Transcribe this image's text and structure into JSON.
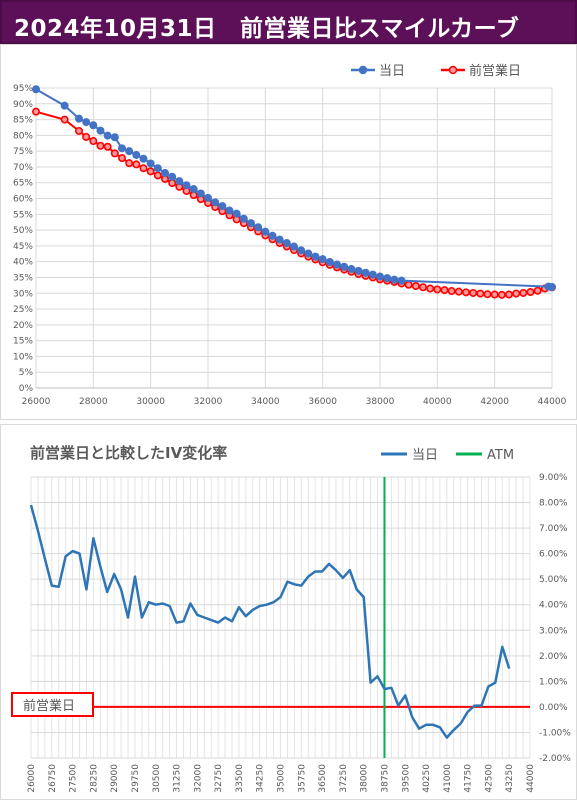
{
  "header": {
    "title": "2024年10月31日　前営業日比スマイルカーブ"
  },
  "colors": {
    "header_bg": "#5c1058",
    "today": "#4472c4",
    "prev": "#ff0000",
    "atm": "#00b050",
    "ref": "#ff0000"
  },
  "chart_data": [
    {
      "type": "line",
      "title": "",
      "legend": {
        "position": "top-right"
      },
      "grid": true,
      "xlim": [
        26000,
        44000
      ],
      "ylim": [
        0,
        95
      ],
      "x_ticks": [
        26000,
        28000,
        30000,
        32000,
        34000,
        36000,
        38000,
        40000,
        42000,
        44000
      ],
      "x_tick_labels": [
        "26000",
        "28000",
        "30000",
        "32000",
        "34000",
        "36000",
        "38000",
        "40000",
        "42000",
        "44000"
      ],
      "y_ticks": [
        0,
        5,
        10,
        15,
        20,
        25,
        30,
        35,
        40,
        45,
        50,
        55,
        60,
        65,
        70,
        75,
        80,
        85,
        90,
        95
      ],
      "y_tick_labels": [
        "0%",
        "5%",
        "10%",
        "15%",
        "20%",
        "25%",
        "30%",
        "35%",
        "40%",
        "45%",
        "50%",
        "55%",
        "60%",
        "65%",
        "70%",
        "75%",
        "80%",
        "85%",
        "90%",
        "95%"
      ],
      "series": [
        {
          "name": "当日",
          "color": "#4472c4",
          "x": [
            26000,
            27000,
            27500,
            27750,
            28000,
            28250,
            28500,
            28750,
            29000,
            29250,
            29500,
            29750,
            30000,
            30250,
            30500,
            30750,
            31000,
            31250,
            31500,
            31750,
            32000,
            32250,
            32500,
            32750,
            33000,
            33250,
            33500,
            33750,
            34000,
            34250,
            34500,
            34750,
            35000,
            35250,
            35500,
            35750,
            36000,
            36250,
            36500,
            36750,
            37000,
            37250,
            37500,
            37750,
            38000,
            38250,
            38500,
            38750,
            43875,
            44000
          ],
          "y": [
            94.6,
            89.4,
            85.3,
            84.2,
            83.2,
            81.5,
            79.9,
            79.4,
            75.9,
            75.0,
            73.8,
            72.6,
            71.1,
            69.6,
            68.1,
            66.9,
            65.5,
            64.2,
            63.0,
            61.6,
            60.2,
            58.8,
            57.6,
            56.2,
            55.2,
            53.6,
            52.2,
            50.9,
            49.5,
            48.2,
            47.0,
            45.9,
            44.8,
            43.6,
            42.6,
            41.6,
            40.8,
            39.9,
            39.1,
            38.4,
            37.7,
            37.1,
            36.5,
            35.9,
            35.3,
            34.8,
            34.3,
            34.0,
            32.1,
            32.0
          ]
        },
        {
          "name": "前営業日",
          "color": "#ff0000",
          "x": [
            26000,
            27000,
            27500,
            27750,
            28000,
            28250,
            28500,
            28750,
            29000,
            29250,
            29500,
            29750,
            30000,
            30250,
            30500,
            30750,
            31000,
            31250,
            31500,
            31750,
            32000,
            32250,
            32500,
            32750,
            33000,
            33250,
            33500,
            33750,
            34000,
            34250,
            34500,
            34750,
            35000,
            35250,
            35500,
            35750,
            36000,
            36250,
            36500,
            36750,
            37000,
            37250,
            37500,
            37750,
            38000,
            38250,
            38500,
            38750,
            39000,
            39250,
            39500,
            39750,
            40000,
            40250,
            40500,
            40750,
            41000,
            41250,
            41500,
            41750,
            42000,
            42250,
            42500,
            42750,
            43000,
            43250,
            43500,
            43750,
            44000
          ],
          "y": [
            87.5,
            85.0,
            81.4,
            79.5,
            78.2,
            76.7,
            76.4,
            74.3,
            72.8,
            71.2,
            70.8,
            69.6,
            68.6,
            67.3,
            66.2,
            64.9,
            63.7,
            62.4,
            61.1,
            59.8,
            58.6,
            57.3,
            56.0,
            54.7,
            53.4,
            52.2,
            50.9,
            49.6,
            48.3,
            47.1,
            45.9,
            44.8,
            43.7,
            42.6,
            41.6,
            40.7,
            39.8,
            39.0,
            38.2,
            37.5,
            36.8,
            36.1,
            35.5,
            35.0,
            34.4,
            34.0,
            33.6,
            33.1,
            32.7,
            32.3,
            31.9,
            31.5,
            31.2,
            31.0,
            30.7,
            30.5,
            30.3,
            30.1,
            29.9,
            29.7,
            29.6,
            29.5,
            29.6,
            29.9,
            30.1,
            30.4,
            30.8,
            31.5,
            31.9
          ]
        }
      ]
    },
    {
      "type": "line",
      "title": "前営業日と比較したIV変化率",
      "legend": {
        "position": "top-right"
      },
      "grid": true,
      "ylim": [
        -2,
        9
      ],
      "y_axis_side": "right",
      "categories": [
        26000,
        26250,
        26500,
        26750,
        27000,
        27250,
        27500,
        27750,
        28000,
        28250,
        28500,
        28750,
        29000,
        29250,
        29500,
        29750,
        30000,
        30250,
        30500,
        30750,
        31000,
        31250,
        31500,
        31750,
        32000,
        32250,
        32500,
        32750,
        33000,
        33250,
        33500,
        33750,
        34000,
        34250,
        34500,
        34750,
        35000,
        35250,
        35500,
        35750,
        36000,
        36250,
        36500,
        36750,
        37000,
        37250,
        37500,
        37750,
        38000,
        38250,
        38500,
        38750,
        39000,
        39250,
        39500,
        39750,
        40000,
        40250,
        40500,
        40750,
        41000,
        41250,
        41500,
        41750,
        42000,
        42250,
        42500,
        42750,
        43000,
        43250,
        43500,
        43750,
        44000
      ],
      "x_tick_labels": [
        "26000",
        "26750",
        "27500",
        "28250",
        "29000",
        "29750",
        "30500",
        "31250",
        "32000",
        "32750",
        "33500",
        "34250",
        "35000",
        "35750",
        "36500",
        "37250",
        "38000",
        "38750",
        "39500",
        "40250",
        "41000",
        "41750",
        "42500",
        "43250",
        "44000"
      ],
      "y_ticks": [
        -2,
        -1,
        0,
        1,
        2,
        3,
        4,
        5,
        6,
        7,
        8,
        9
      ],
      "y_tick_labels": [
        "-2.00%",
        "-1.00%",
        "0.00%",
        "1.00%",
        "2.00%",
        "3.00%",
        "4.00%",
        "5.00%",
        "6.00%",
        "7.00%",
        "8.00%",
        "9.00%"
      ],
      "series": [
        {
          "name": "当日",
          "color": "#2e75b6",
          "values": [
            7.9,
            6.9,
            5.8,
            4.75,
            4.7,
            5.9,
            6.1,
            6.0,
            4.6,
            6.6,
            5.5,
            4.5,
            5.2,
            4.6,
            3.5,
            5.1,
            3.5,
            4.1,
            4.0,
            4.05,
            3.95,
            3.3,
            3.35,
            4.05,
            3.6,
            3.5,
            3.4,
            3.3,
            3.5,
            3.35,
            3.9,
            3.55,
            3.8,
            3.95,
            4.0,
            4.1,
            4.3,
            4.9,
            4.8,
            4.75,
            5.1,
            5.3,
            5.3,
            5.6,
            5.35,
            5.05,
            5.35,
            4.6,
            4.3,
            0.95,
            1.2,
            0.7,
            0.75,
            0.05,
            0.45,
            -0.4,
            -0.85,
            -0.7,
            -0.7,
            -0.8,
            -1.2,
            -0.9,
            -0.65,
            -0.2,
            0.05,
            0.05,
            0.8,
            0.95,
            2.35,
            1.5,
            null,
            null,
            null
          ]
        },
        {
          "name": "ATM",
          "color": "#00b050",
          "vertical_at": 38750
        }
      ],
      "reference_line": {
        "y": 0,
        "label": "前営業日",
        "color": "#ff0000"
      }
    }
  ]
}
